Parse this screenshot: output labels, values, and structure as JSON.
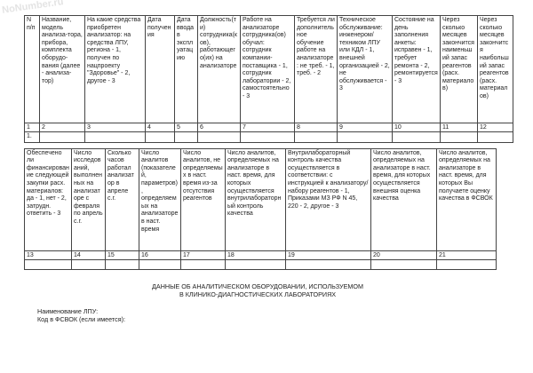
{
  "watermark": "NoNumber.ru",
  "table1": {
    "headers": [
      "N п/п",
      "Название, модель анализа-тора, прибора, комплекта оборудо-вания (далее - анализа-тор)",
      "На какие средства приобретен анализатор: на средства ЛПУ, региона - 1, получен по нацпроекту \"Здоровье\" - 2, другое - 3",
      "Дата получения",
      "Дата ввода в эксплуатацию",
      "Должность(ти) сотрудника(ков), работающего(их) на анализаторе",
      "Работе на анализаторе сотрудника(ов) обучал: сотрудник компании-поставщика - 1, сотрудник лаборатории - 2, самостоятельно - 3",
      "Требуется ли дополнительное обучение работе на анализаторе: не треб. - 1, треб. - 2",
      "Техническое обслуживание: инженером/ техником ЛПУ или КДЛ - 1, внешней организацией - 2, не обслуживается - 3",
      "Состояние на день заполнения анкеты: исправен - 1, требует ремонта - 2, ремонтируется - 3",
      "Через сколько месяцев закончится наименьший запас реагентов (расх. материалов)",
      "Через сколько месяцев закончится наибольший запас реагентов (расх. материалов)"
    ],
    "numbers": [
      "1",
      "2",
      "3",
      "4",
      "5",
      "6",
      "7",
      "8",
      "9",
      "10",
      "11",
      "12"
    ],
    "rows": [
      [
        "1.",
        "",
        "",
        "",
        "",
        "",
        "",
        "",
        "",
        "",
        "",
        ""
      ]
    ]
  },
  "table2": {
    "headers": [
      "Обеспечено ли финансирование следующей закупки расх. материалов: да - 1, нет - 2, затрудн. ответить - 3",
      "Число исследований, выполненных на анализаторе с февраля по апрель с.г.",
      "Сколько часов работал анализатор в апреле с.г.",
      "Число аналитов (показателей, параметров), определяемых на анализаторе в наст. время",
      "Число аналитов, не определяемых в наст. время из-за отсутствия реагентов",
      "Число аналитов, определяемых на анализаторе в наст. время, для которых осуществляется внутрилабораторный контроль качества",
      "Внутрилабораторный контроль качества осуществляется в соответствии: с инструкцией к анализатору/набору реагентов - 1, Приказами МЗ РФ N 45, 220 - 2, другое - 3",
      "Число аналитов, определяемых на анализаторе в наст. время, для которых осуществляется внешняя оценка качества",
      "Число аналитов, определяемых на анализаторе в наст. время, для которых Вы получаете оценку качества в ФСВОК"
    ],
    "numbers": [
      "13",
      "14",
      "15",
      "16",
      "17",
      "18",
      "19",
      "20",
      "21"
    ]
  },
  "title_line1": "ДАННЫЕ ОБ АНАЛИТИЧЕСКОМ ОБОРУДОВАНИИ, ИСПОЛЬЗУЕМОМ",
  "title_line2": "В КЛИНИКО-ДИАГНОСТИЧЕСКИХ ЛАБОРАТОРИЯХ",
  "lpu_label": "Наименование ЛПУ:",
  "fsvok_label": "Код в ФСВОК (если имеется):"
}
